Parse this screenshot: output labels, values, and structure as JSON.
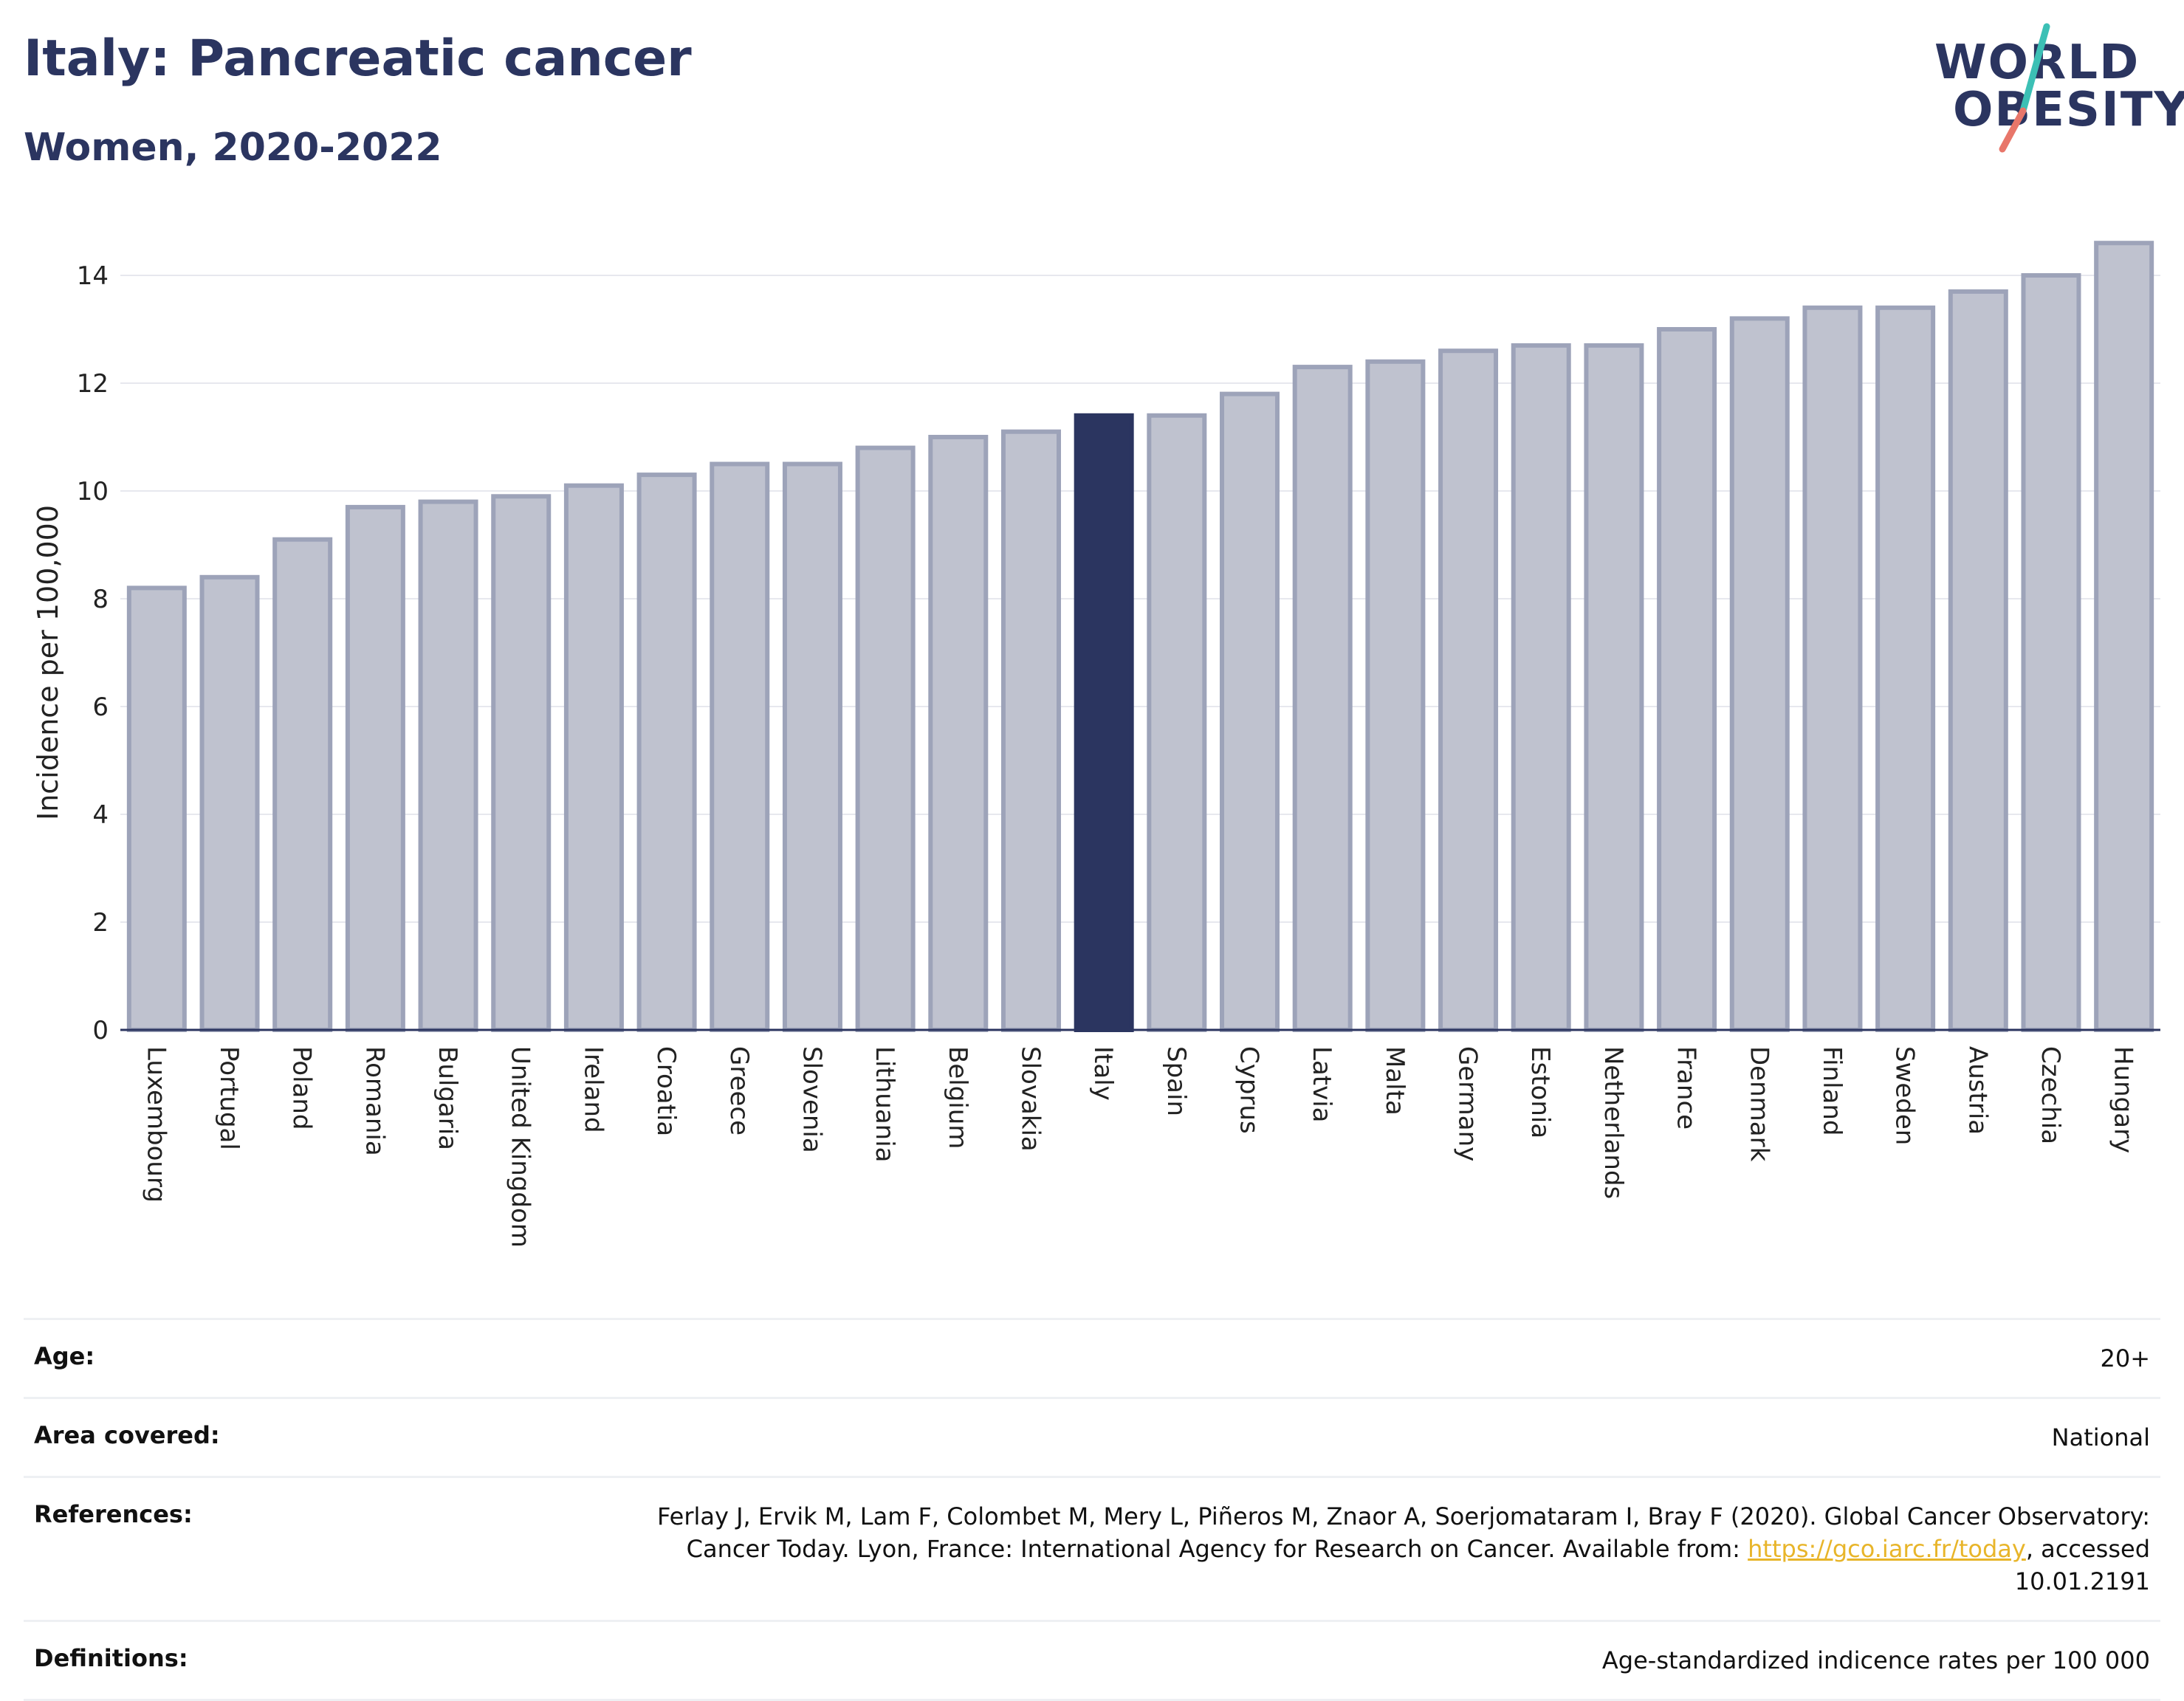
{
  "header": {
    "title": "Italy: Pancreatic cancer",
    "subtitle": "Women, 2020-2022"
  },
  "logo": {
    "line1": "WORLD",
    "line2": "OBESITY",
    "accent_teal": "#3cc0b5",
    "accent_coral": "#e8766a"
  },
  "colors": {
    "bar_default": "#bfc2cf",
    "bar_default_stroke": "#9da3b9",
    "bar_highlight": "#2b3560",
    "grid": "#e7e8ee",
    "axis": "#2b3560"
  },
  "chart_data": {
    "type": "bar",
    "title": "Italy: Pancreatic cancer",
    "subtitle": "Women, 2020-2022",
    "xlabel": "",
    "ylabel": "Incidence per 100,000",
    "ylim": [
      0,
      15
    ],
    "yticks": [
      0,
      2,
      4,
      6,
      8,
      10,
      12,
      14
    ],
    "grid": true,
    "highlight": "Italy",
    "categories": [
      "Luxembourg",
      "Portugal",
      "Poland",
      "Romania",
      "Bulgaria",
      "United Kingdom",
      "Ireland",
      "Croatia",
      "Greece",
      "Slovenia",
      "Lithuania",
      "Belgium",
      "Slovakia",
      "Italy",
      "Spain",
      "Cyprus",
      "Latvia",
      "Malta",
      "Germany",
      "Estonia",
      "Netherlands",
      "France",
      "Denmark",
      "Finland",
      "Sweden",
      "Austria",
      "Czechia",
      "Hungary"
    ],
    "values": [
      8.2,
      8.4,
      9.1,
      9.7,
      9.8,
      9.9,
      10.1,
      10.3,
      10.5,
      10.5,
      10.8,
      11.0,
      11.1,
      11.4,
      11.4,
      11.8,
      12.3,
      12.4,
      12.6,
      12.7,
      12.7,
      13.0,
      13.2,
      13.4,
      13.4,
      13.7,
      14.0,
      14.6
    ]
  },
  "meta": {
    "age_label": "Age:",
    "age_value": "20+",
    "area_label": "Area covered:",
    "area_value": "National",
    "references_label": "References:",
    "references_text_before": "Ferlay J, Ervik M, Lam F, Colombet M, Mery L, Piñeros M, Znaor A, Soerjomataram I, Bray F (2020). Global Cancer Observatory: Cancer Today. Lyon, France: International Agency for Research on Cancer. Available from: ",
    "references_link": "https://gco.iarc.fr/today",
    "references_text_after": ", accessed 10.01.2191",
    "definitions_label": "Definitions:",
    "definitions_value": "Age-standardized indicence rates per 100 000"
  }
}
